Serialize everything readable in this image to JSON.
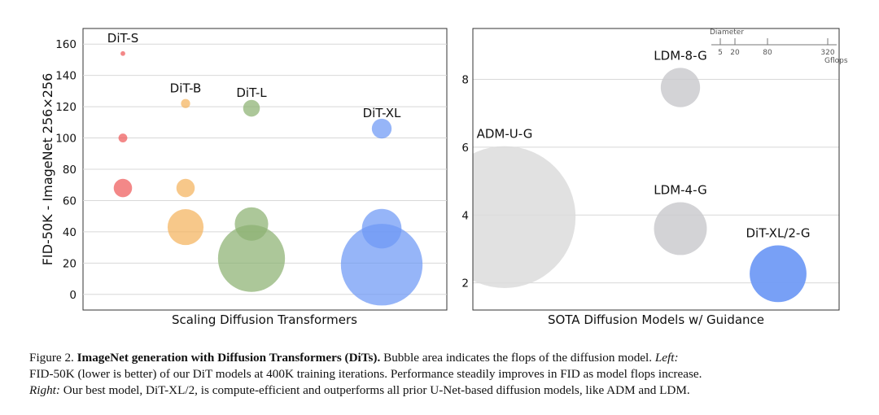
{
  "chart_data": [
    {
      "type": "scatter",
      "variant": "bubble",
      "title": "Scaling Diffusion Transformers",
      "ylabel": "FID-50K - ImageNet 256×256",
      "ylim": [
        -10,
        170
      ],
      "yticks": [
        0,
        20,
        40,
        60,
        80,
        100,
        120,
        140,
        160
      ],
      "grid": true,
      "categories": [
        "DiT-S",
        "DiT-B",
        "DiT-L",
        "DiT-XL"
      ],
      "series": [
        {
          "name": "DiT-S",
          "color": "#ef5a5a",
          "points": [
            {
              "y": 154,
              "gflops": 0.4
            },
            {
              "y": 100,
              "gflops": 1.4
            },
            {
              "y": 68,
              "gflops": 6
            }
          ]
        },
        {
          "name": "DiT-B",
          "color": "#f4b35d",
          "points": [
            {
              "y": 122,
              "gflops": 1.5
            },
            {
              "y": 68,
              "gflops": 6
            },
            {
              "y": 43,
              "gflops": 23
            }
          ]
        },
        {
          "name": "DiT-L",
          "color": "#8cb272",
          "points": [
            {
              "y": 119,
              "gflops": 5
            },
            {
              "y": 45,
              "gflops": 20
            },
            {
              "y": 23,
              "gflops": 80
            }
          ]
        },
        {
          "name": "DiT-XL",
          "color": "#6d98f5",
          "points": [
            {
              "y": 106,
              "gflops": 7
            },
            {
              "y": 42,
              "gflops": 28
            },
            {
              "y": 19,
              "gflops": 119
            }
          ]
        }
      ]
    },
    {
      "type": "scatter",
      "variant": "bubble",
      "title": "SOTA Diffusion Models w/ Guidance",
      "ylim": [
        1.2,
        9.5
      ],
      "yticks": [
        2,
        4,
        6,
        8
      ],
      "grid": true,
      "points": [
        {
          "name": "ADM-U-G",
          "x": 0.3,
          "y": 3.94,
          "gflops": 742,
          "color": "#dcdcdc"
        },
        {
          "name": "LDM-8-G",
          "x": 3.0,
          "y": 7.76,
          "gflops": 57,
          "color": "#cbcbcf"
        },
        {
          "name": "LDM-4-G",
          "x": 3.0,
          "y": 3.6,
          "gflops": 103,
          "color": "#cbcbcf"
        },
        {
          "name": "DiT-XL/2-G",
          "x": 4.5,
          "y": 2.27,
          "gflops": 119,
          "color": "#6d98f5"
        }
      ],
      "size_legend": {
        "title": "Diameter",
        "ticks": [
          "5",
          "20",
          "80",
          "320"
        ],
        "unit": "Gflops"
      }
    }
  ],
  "caption": {
    "label": "Figure 2.",
    "bold": "ImageNet generation with Diffusion Transformers (DiTs).",
    "text1": "Bubble area indicates the flops of the diffusion model.",
    "left_tag": "Left:",
    "line2": "FID-50K (lower is better) of our DiT models at 400K training iterations. Performance steadily improves in FID as model flops increase.",
    "right_tag": "Right:",
    "line3": "Our best model, DiT-XL/2, is compute-efficient and outperforms all prior U-Net-based diffusion models, like ADM and LDM."
  }
}
